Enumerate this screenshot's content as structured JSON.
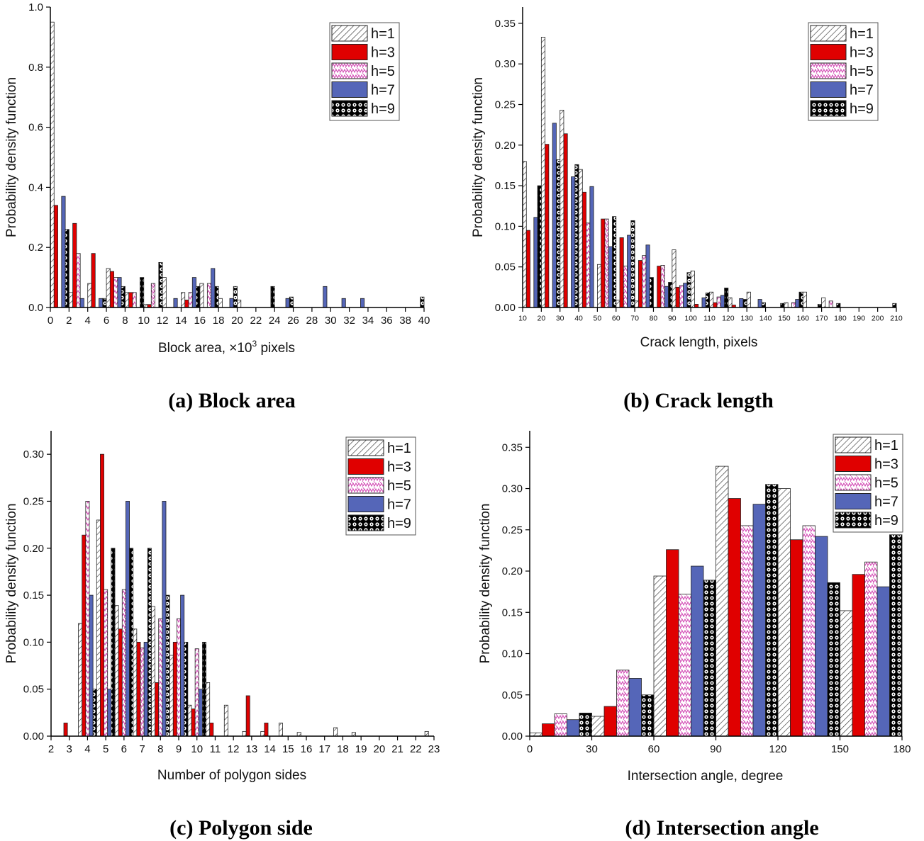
{
  "legend_entries": [
    "h=1",
    "h=3",
    "h=5",
    "h=7",
    "h=9"
  ],
  "series_styles": [
    {
      "fill": "#ffffff",
      "pattern": "hatch",
      "color": "#333333"
    },
    {
      "fill": "#e00000",
      "pattern": "solid",
      "color": "#e00000"
    },
    {
      "fill": "#ffffff",
      "pattern": "zigzag",
      "color": "#d040b0"
    },
    {
      "fill": "#5566b8",
      "pattern": "solid",
      "color": "#5566b8"
    },
    {
      "fill": "#000000",
      "pattern": "dots",
      "color": "#000000"
    }
  ],
  "chart_data": [
    {
      "id": "a",
      "type": "bar",
      "caption": "(a) Block area",
      "xlabel_main": "Block area, ×10",
      "xlabel_sup": "3",
      "xlabel_tail": " pixels",
      "ylabel": "Probability density function",
      "xlim": [
        0,
        40
      ],
      "ylim": [
        0,
        1.0
      ],
      "xticks": [
        0,
        2,
        4,
        6,
        8,
        10,
        12,
        14,
        16,
        18,
        20,
        22,
        24,
        26,
        28,
        30,
        32,
        34,
        36,
        38,
        40
      ],
      "yticks": [
        0.0,
        0.2,
        0.4,
        0.6,
        0.8,
        1.0
      ],
      "ytick_labels": [
        "0.0",
        "0.2",
        "0.4",
        "0.6",
        "0.8",
        "1.0"
      ],
      "x": [
        1,
        3,
        5,
        7,
        9,
        11,
        13,
        15,
        17,
        19,
        21,
        23,
        25,
        27,
        29,
        31,
        33,
        35,
        37,
        39
      ],
      "bin_width": 2,
      "series": [
        {
          "name": "h=1",
          "values": [
            0.95,
            0.05,
            0.08,
            0.13,
            0.05,
            0.01,
            0.1,
            0.05,
            0.08,
            0.03,
            0.025,
            0,
            0,
            0,
            0,
            0,
            0,
            0,
            0,
            0
          ]
        },
        {
          "name": "h=3",
          "values": [
            0.34,
            0.28,
            0.18,
            0.12,
            0.05,
            0.01,
            0,
            0.025,
            0,
            0,
            0,
            0,
            0,
            0,
            0,
            0,
            0,
            0,
            0,
            0
          ]
        },
        {
          "name": "h=5",
          "values": [
            0,
            0.18,
            0,
            0.1,
            0.05,
            0.08,
            0,
            0.05,
            0.08,
            0,
            0,
            0,
            0,
            0,
            0,
            0,
            0,
            0,
            0,
            0
          ]
        },
        {
          "name": "h=7",
          "values": [
            0.37,
            0.03,
            0.03,
            0.1,
            0,
            0,
            0.03,
            0.1,
            0.13,
            0.03,
            0,
            0,
            0.03,
            0,
            0.07,
            0.03,
            0.03,
            0,
            0,
            0
          ]
        },
        {
          "name": "h=9",
          "values": [
            0.26,
            0,
            0.03,
            0.07,
            0.1,
            0.15,
            0,
            0.07,
            0.07,
            0.07,
            0,
            0.07,
            0.035,
            0,
            0,
            0,
            0,
            0,
            0,
            0.035
          ]
        }
      ]
    },
    {
      "id": "b",
      "type": "bar",
      "caption": "(b) Crack length",
      "xlabel_main": "Crack length, pixels",
      "ylabel": "Probability density function",
      "xlim": [
        10,
        210
      ],
      "ylim": [
        0,
        0.37
      ],
      "xticks": [
        10,
        20,
        30,
        40,
        50,
        60,
        70,
        80,
        90,
        100,
        110,
        120,
        130,
        140,
        150,
        160,
        170,
        180,
        190,
        200,
        210
      ],
      "yticks": [
        0.0,
        0.05,
        0.1,
        0.15,
        0.2,
        0.25,
        0.3,
        0.35
      ],
      "ytick_labels": [
        "0.00",
        "0.05",
        "0.10",
        "0.15",
        "0.20",
        "0.25",
        "0.30",
        "0.35"
      ],
      "x": [
        15,
        25,
        35,
        45,
        55,
        65,
        75,
        85,
        95,
        105,
        115,
        125,
        135,
        145,
        155,
        165,
        175,
        185,
        195,
        205
      ],
      "bin_width": 10,
      "series": [
        {
          "name": "h=1",
          "values": [
            0.18,
            0.333,
            0.243,
            0.17,
            0.053,
            0.009,
            0.008,
            0,
            0.071,
            0.045,
            0.019,
            0.012,
            0.019,
            0,
            0.006,
            0.019,
            0.012,
            0,
            0,
            0
          ]
        },
        {
          "name": "h=3",
          "values": [
            0.095,
            0.201,
            0.214,
            0.142,
            0.109,
            0.086,
            0.058,
            0.051,
            0.025,
            0.004,
            0.006,
            0.003,
            0,
            0,
            0,
            0,
            0,
            0,
            0,
            0
          ]
        },
        {
          "name": "h=5",
          "values": [
            0,
            0,
            0,
            0.104,
            0.109,
            0.051,
            0.064,
            0.052,
            0.027,
            0,
            0.013,
            0,
            0,
            0,
            0.006,
            0,
            0.008,
            0,
            0,
            0
          ]
        },
        {
          "name": "h=7",
          "values": [
            0.111,
            0.227,
            0.161,
            0.149,
            0.075,
            0.089,
            0.077,
            0.026,
            0.03,
            0.012,
            0.015,
            0.011,
            0.01,
            0,
            0.01,
            0,
            0,
            0,
            0,
            0
          ]
        },
        {
          "name": "h=9",
          "values": [
            0.15,
            0.182,
            0.176,
            0,
            0.112,
            0.107,
            0.037,
            0.031,
            0.043,
            0.018,
            0.024,
            0.01,
            0.006,
            0.005,
            0.019,
            0.004,
            0.005,
            0,
            0,
            0.005
          ]
        }
      ]
    },
    {
      "id": "c",
      "type": "bar",
      "caption": "(c) Polygon side",
      "xlabel_main": "Number of polygon sides",
      "ylabel": "Probability density function",
      "xlim": [
        2,
        23
      ],
      "ylim": [
        0,
        0.325
      ],
      "xticks": [
        2,
        3,
        4,
        5,
        6,
        7,
        8,
        9,
        10,
        11,
        12,
        13,
        14,
        15,
        16,
        17,
        18,
        19,
        20,
        21,
        22,
        23
      ],
      "yticks": [
        0.0,
        0.05,
        0.1,
        0.15,
        0.2,
        0.25,
        0.3
      ],
      "ytick_labels": [
        "0.00",
        "0.05",
        "0.10",
        "0.15",
        "0.20",
        "0.25",
        "0.30"
      ],
      "x": [
        3,
        4,
        5,
        6,
        7,
        8,
        9,
        10,
        11,
        12,
        13,
        14,
        15,
        16,
        17,
        18,
        19,
        20,
        21,
        22,
        23
      ],
      "bin_width": 1,
      "series": [
        {
          "name": "h=1",
          "values": [
            0,
            0.12,
            0.23,
            0.139,
            0.114,
            0.138,
            0.086,
            0.033,
            0.057,
            0.033,
            0.005,
            0.005,
            0.014,
            0.004,
            0,
            0.009,
            0.004,
            0,
            0,
            0,
            0.005
          ]
        },
        {
          "name": "h=3",
          "values": [
            0.014,
            0.214,
            0.3,
            0.114,
            0.1,
            0.057,
            0.1,
            0.029,
            0.014,
            0,
            0.043,
            0.014,
            0,
            0,
            0,
            0,
            0,
            0,
            0,
            0,
            0
          ]
        },
        {
          "name": "h=5",
          "values": [
            0,
            0.25,
            0.156,
            0.156,
            0.094,
            0.125,
            0.125,
            0.093,
            0,
            0,
            0,
            0,
            0,
            0,
            0,
            0,
            0,
            0,
            0,
            0,
            0
          ]
        },
        {
          "name": "h=7",
          "values": [
            0,
            0.15,
            0.05,
            0.25,
            0.1,
            0.25,
            0.15,
            0.05,
            0,
            0,
            0,
            0,
            0,
            0,
            0,
            0,
            0,
            0,
            0,
            0,
            0
          ]
        },
        {
          "name": "h=9",
          "values": [
            0,
            0.05,
            0.2,
            0.2,
            0.2,
            0.15,
            0.1,
            0.1,
            0,
            0,
            0,
            0,
            0,
            0,
            0,
            0,
            0,
            0,
            0,
            0,
            0
          ]
        }
      ]
    },
    {
      "id": "d",
      "type": "bar",
      "caption": "(d) Intersection angle",
      "xlabel_main": "Intersection angle, degree",
      "ylabel": "Probability density function",
      "xlim": [
        0,
        180
      ],
      "ylim": [
        0,
        0.37
      ],
      "xticks": [
        0,
        30,
        60,
        90,
        120,
        150,
        180
      ],
      "yticks": [
        0.0,
        0.05,
        0.1,
        0.15,
        0.2,
        0.25,
        0.3,
        0.35
      ],
      "ytick_labels": [
        "0.00",
        "0.05",
        "0.10",
        "0.15",
        "0.20",
        "0.25",
        "0.30",
        "0.35"
      ],
      "x": [
        15,
        45,
        75,
        105,
        135,
        165
      ],
      "bin_width": 30,
      "series": [
        {
          "name": "h=1",
          "values": [
            0.004,
            0.024,
            0.194,
            0.327,
            0.3,
            0.152
          ]
        },
        {
          "name": "h=3",
          "values": [
            0.015,
            0.036,
            0.226,
            0.288,
            0.238,
            0.196
          ]
        },
        {
          "name": "h=5",
          "values": [
            0.027,
            0.08,
            0.172,
            0.255,
            0.255,
            0.211
          ]
        },
        {
          "name": "h=7",
          "values": [
            0.02,
            0.07,
            0.206,
            0.281,
            0.242,
            0.181
          ]
        },
        {
          "name": "h=9",
          "values": [
            0.028,
            0.05,
            0.189,
            0.305,
            0.186,
            0.244
          ]
        }
      ]
    }
  ]
}
